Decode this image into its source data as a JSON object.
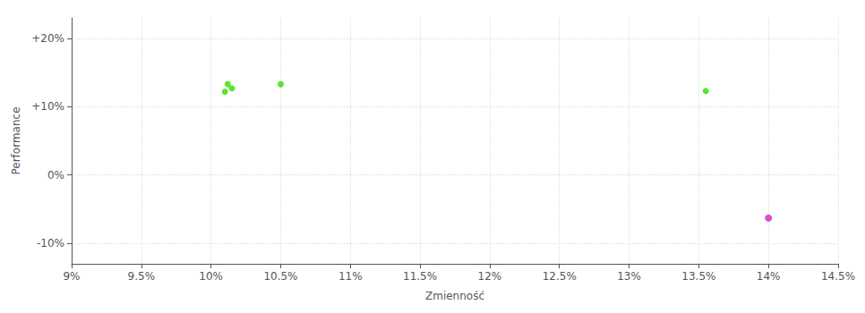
{
  "chart_data": {
    "type": "scatter",
    "xlabel": "Zmienność",
    "ylabel": "Performance",
    "xlim": [
      0.09,
      0.145
    ],
    "ylim": [
      -0.13,
      0.23
    ],
    "xticks": [
      {
        "value": 0.09,
        "label": "9%"
      },
      {
        "value": 0.095,
        "label": "9.5%"
      },
      {
        "value": 0.1,
        "label": "10%"
      },
      {
        "value": 0.105,
        "label": "10.5%"
      },
      {
        "value": 0.11,
        "label": "11%"
      },
      {
        "value": 0.115,
        "label": "11.5%"
      },
      {
        "value": 0.12,
        "label": "12%"
      },
      {
        "value": 0.125,
        "label": "12.5%"
      },
      {
        "value": 0.13,
        "label": "13%"
      },
      {
        "value": 0.135,
        "label": "13.5%"
      },
      {
        "value": 0.14,
        "label": "14%"
      },
      {
        "value": 0.145,
        "label": "14.5%"
      }
    ],
    "yticks": [
      {
        "value": -0.1,
        "label": "-10%"
      },
      {
        "value": 0.0,
        "label": "0%"
      },
      {
        "value": 0.1,
        "label": "+10%"
      },
      {
        "value": 0.2,
        "label": "+20%"
      }
    ],
    "grid": true,
    "series": [
      {
        "color": "#33dd00",
        "x": [
          0.1012,
          0.1015,
          0.101,
          0.105,
          0.1355
        ],
        "values": [
          0.133,
          0.127,
          0.122,
          0.133,
          0.123
        ]
      },
      {
        "color": "#cc22cc",
        "x": [
          0.14
        ],
        "values": [
          -0.063
        ]
      }
    ]
  }
}
